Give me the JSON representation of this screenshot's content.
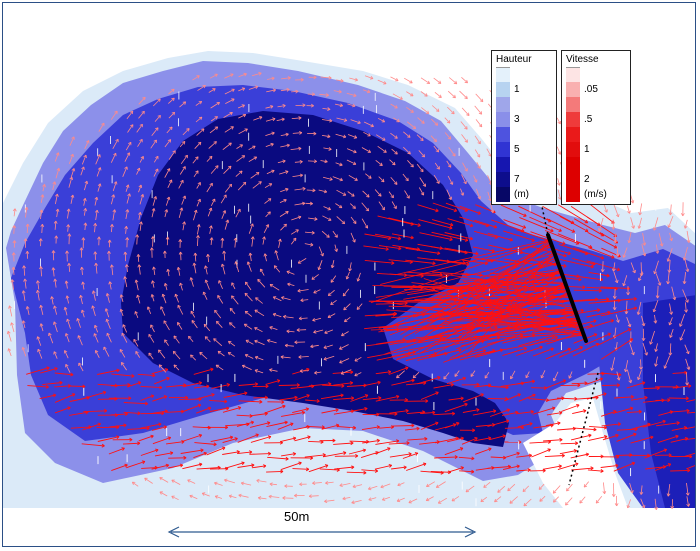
{
  "legend_depth": {
    "title": "Hauteur",
    "items": [
      {
        "label": "",
        "color": "#e4f1fb"
      },
      {
        "label": "1",
        "color": "#b7d3f0"
      },
      {
        "label": "",
        "color": "#9fa6ea"
      },
      {
        "label": "3",
        "color": "#8a8fe9"
      },
      {
        "label": "",
        "color": "#4e53df"
      },
      {
        "label": "5",
        "color": "#3034d3"
      },
      {
        "label": "",
        "color": "#1616b0"
      },
      {
        "label": "7",
        "color": "#0d0d8c"
      },
      {
        "label": "(m)",
        "color": "#070766"
      }
    ]
  },
  "legend_velocity": {
    "title": "Vitesse",
    "items": [
      {
        "label": "",
        "color": "#fde4e4"
      },
      {
        "label": ".05",
        "color": "#f9b0b0"
      },
      {
        "label": "",
        "color": "#f47a7a"
      },
      {
        "label": ".5",
        "color": "#ef3b3b"
      },
      {
        "label": "",
        "color": "#ea1a1a"
      },
      {
        "label": "1",
        "color": "#e20d0d"
      },
      {
        "label": "",
        "color": "#dd0000"
      },
      {
        "label": "2",
        "color": "#dd0000"
      },
      {
        "label": "(m/s)",
        "color": "#dd0000"
      }
    ]
  },
  "scale_bar": {
    "label": "50m"
  },
  "colors": {
    "dry": "#ffffff",
    "shallow": "#dbeaf8",
    "mid": "#8c90ea",
    "deep": "#3a3fd8",
    "deepest": "#0a0a80",
    "arrow": "#ff1010",
    "arrow_faint": "#ff8a8a",
    "weir": "#000000",
    "scale": "#2f5a8f"
  },
  "icons": {
    "scale_arrow": "double-headed-arrow-icon"
  }
}
